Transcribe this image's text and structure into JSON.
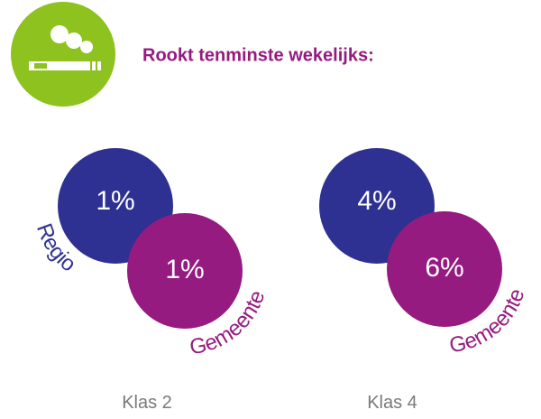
{
  "header": {
    "title": "Rookt tenminste wekelijks:"
  },
  "groups": [
    {
      "label": "Klas 2",
      "regio": {
        "name": "Regio",
        "value": "1%"
      },
      "gemeente": {
        "name": "Gemeente",
        "value": "1%"
      }
    },
    {
      "label": "Klas 4",
      "regio": {
        "value": "4%"
      },
      "gemeente": {
        "name": "Gemeente",
        "value": "6%"
      }
    }
  ]
}
